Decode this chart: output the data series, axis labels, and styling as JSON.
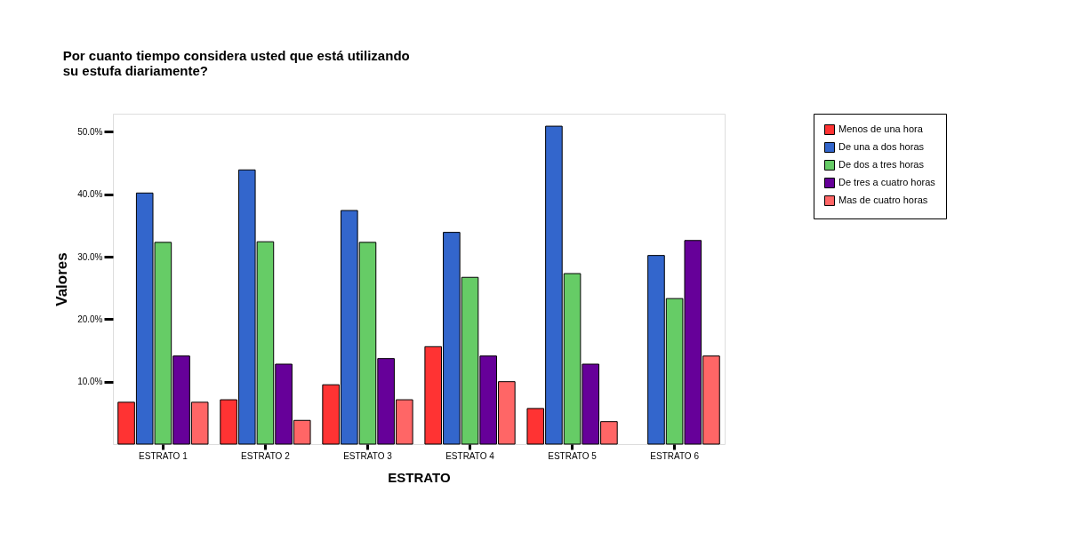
{
  "chart_data": {
    "type": "bar",
    "title": "Por cuanto tiempo considera usted que está utilizando\nsu estufa diariamente?",
    "xlabel": "ESTRATO",
    "ylabel": "Valores",
    "categories": [
      "ESTRATO 1",
      "ESTRATO 2",
      "ESTRATO 3",
      "ESTRATO 4",
      "ESTRATO 5",
      "ESTRATO 6"
    ],
    "series": [
      {
        "name": "Menos de una hora",
        "color": "#ff3333",
        "values": [
          6.7,
          7.1,
          9.5,
          15.6,
          5.7,
          null
        ]
      },
      {
        "name": "De una a dos horas",
        "color": "#3366cc",
        "values": [
          40.2,
          43.9,
          37.4,
          33.9,
          50.9,
          30.2
        ]
      },
      {
        "name": "De dos a tres horas",
        "color": "#66cc66",
        "values": [
          32.3,
          32.4,
          32.3,
          26.7,
          27.3,
          23.3
        ]
      },
      {
        "name": "De tres a cuatro horas",
        "color": "#660099",
        "values": [
          14.1,
          12.8,
          13.7,
          14.1,
          12.8,
          32.6
        ]
      },
      {
        "name": "Mas de cuatro horas",
        "color": "#ff6666",
        "values": [
          6.7,
          3.8,
          7.1,
          10.0,
          3.6,
          14.1
        ]
      }
    ],
    "ylim": [
      0,
      52.9
    ],
    "yticks": [
      {
        "value": 10,
        "label": "10.0%"
      },
      {
        "value": 20,
        "label": "20.0%"
      },
      {
        "value": 30,
        "label": "30.0%"
      },
      {
        "value": 40,
        "label": "40.0%"
      },
      {
        "value": 50,
        "label": "50.0%"
      }
    ],
    "grid": false,
    "legend": "top right"
  }
}
